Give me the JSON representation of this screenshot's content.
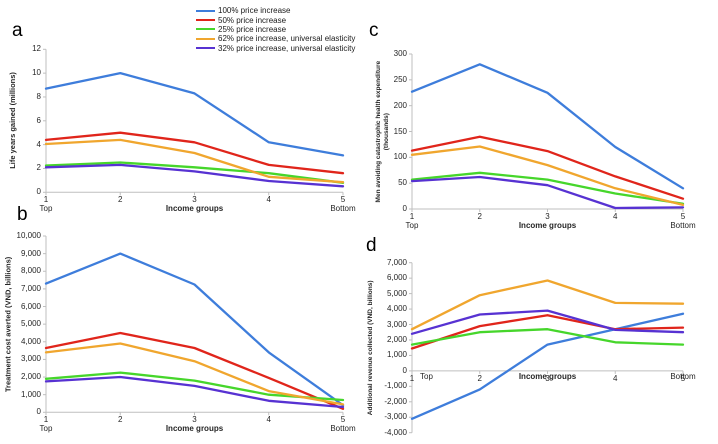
{
  "figure": {
    "legend": {
      "position": "top-center",
      "items": [
        {
          "label": "100% price increase",
          "color": "#3E7DDB"
        },
        {
          "label": "50% price increase",
          "color": "#E0251B"
        },
        {
          "label": "25% price increase",
          "color": "#46D62B"
        },
        {
          "label": "62% price increase, universal elasticity",
          "color": "#F0A62E"
        },
        {
          "label": "32% price increase, universal elasticity",
          "color": "#5732D2"
        }
      ]
    }
  },
  "chart_data": [
    {
      "id": "a",
      "type": "line",
      "panel_letter": "a",
      "grid": false,
      "ylabel": "Life years gained (millions)",
      "xlabel": "Income groups",
      "x_sublabel_left": "Top",
      "x_sublabel_right": "Bottom",
      "categories": [
        "1",
        "2",
        "3",
        "4",
        "5"
      ],
      "ylim": [
        0,
        12
      ],
      "yticks": [
        {
          "value": 0,
          "label": "0"
        },
        {
          "value": 2,
          "label": "2"
        },
        {
          "value": 4,
          "label": "4"
        },
        {
          "value": 6,
          "label": "6"
        },
        {
          "value": 8,
          "label": "8"
        },
        {
          "value": 10,
          "label": "10"
        },
        {
          "value": 12,
          "label": "12"
        }
      ],
      "series": [
        {
          "name": "100% price increase",
          "values": [
            8.7,
            10.0,
            8.3,
            4.2,
            3.1
          ]
        },
        {
          "name": "50% price increase",
          "values": [
            4.4,
            5.0,
            4.2,
            2.3,
            1.6
          ]
        },
        {
          "name": "25% price increase",
          "values": [
            2.25,
            2.5,
            2.1,
            1.6,
            0.8
          ]
        },
        {
          "name": "62% price increase, universal elasticity",
          "values": [
            4.05,
            4.4,
            3.3,
            1.3,
            0.85
          ]
        },
        {
          "name": "32% price increase, universal elasticity",
          "values": [
            2.1,
            2.3,
            1.75,
            0.95,
            0.5
          ]
        }
      ]
    },
    {
      "id": "b",
      "type": "line",
      "panel_letter": "b",
      "grid": false,
      "ylabel": "Treatment cost averted (VND, billions)",
      "xlabel": "Income groups",
      "x_sublabel_left": "Top",
      "x_sublabel_right": "Bottom",
      "categories": [
        "1",
        "2",
        "3",
        "4",
        "5"
      ],
      "ylim": [
        0,
        10000
      ],
      "yticks": [
        {
          "value": 0,
          "label": "0"
        },
        {
          "value": 1000,
          "label": "1,000"
        },
        {
          "value": 2000,
          "label": "2,000"
        },
        {
          "value": 3000,
          "label": "3,000"
        },
        {
          "value": 4000,
          "label": "4,000"
        },
        {
          "value": 5000,
          "label": "5,000"
        },
        {
          "value": 6000,
          "label": "6,000"
        },
        {
          "value": 7000,
          "label": "7,000"
        },
        {
          "value": 8000,
          "label": "8,000"
        },
        {
          "value": 9000,
          "label": "9,000"
        },
        {
          "value": 10000,
          "label": "10,000"
        }
      ],
      "series": [
        {
          "name": "100% price increase",
          "values": [
            7300,
            9000,
            7250,
            3400,
            400
          ]
        },
        {
          "name": "50% price increase",
          "values": [
            3650,
            4500,
            3650,
            1950,
            200
          ]
        },
        {
          "name": "25% price increase",
          "values": [
            1900,
            2250,
            1800,
            1000,
            700
          ]
        },
        {
          "name": "62% price increase, universal elasticity",
          "values": [
            3400,
            3900,
            2900,
            1200,
            450
          ]
        },
        {
          "name": "32% price increase, universal elasticity",
          "values": [
            1750,
            2000,
            1500,
            650,
            300
          ]
        }
      ]
    },
    {
      "id": "c",
      "type": "line",
      "panel_letter": "c",
      "grid": false,
      "ylabel": "Men avoiding catastrophic health expenditure\n(thousands)",
      "xlabel": "Income groups",
      "x_sublabel_left": "Top",
      "x_sublabel_right": "Bottom",
      "categories": [
        "1",
        "2",
        "3",
        "4",
        "5"
      ],
      "ylim": [
        0,
        300
      ],
      "yticks": [
        {
          "value": 0,
          "label": "0"
        },
        {
          "value": 50,
          "label": "50"
        },
        {
          "value": 100,
          "label": "100"
        },
        {
          "value": 150,
          "label": "150"
        },
        {
          "value": 200,
          "label": "200"
        },
        {
          "value": 250,
          "label": "250"
        },
        {
          "value": 300,
          "label": "300"
        }
      ],
      "series": [
        {
          "name": "100% price increase",
          "values": [
            227,
            280,
            225,
            120,
            40
          ]
        },
        {
          "name": "50% price increase",
          "values": [
            113,
            140,
            112,
            63,
            20
          ]
        },
        {
          "name": "25% price increase",
          "values": [
            57,
            70,
            57,
            30,
            10
          ]
        },
        {
          "name": "62% price increase, universal elasticity",
          "values": [
            105,
            121,
            85,
            40,
            8
          ]
        },
        {
          "name": "32% price increase, universal elasticity",
          "values": [
            54,
            62,
            46,
            2,
            3
          ]
        }
      ]
    },
    {
      "id": "d",
      "type": "line",
      "panel_letter": "d",
      "grid": false,
      "ylabel": "Additional revenue collected (VND, billions)",
      "xlabel": "Income groups",
      "x_sublabel_left": "Top",
      "x_sublabel_right": "Bottom",
      "categories": [
        "1",
        "2",
        "3",
        "4",
        "5"
      ],
      "ylim": [
        -4000,
        7000
      ],
      "yticks": [
        {
          "value": -4000,
          "label": "-4,000"
        },
        {
          "value": -3000,
          "label": "-3,000"
        },
        {
          "value": -2000,
          "label": "-2,000"
        },
        {
          "value": -1000,
          "label": "-1,000"
        },
        {
          "value": 0,
          "label": "0"
        },
        {
          "value": 1000,
          "label": "1,000"
        },
        {
          "value": 2000,
          "label": "2,000"
        },
        {
          "value": 3000,
          "label": "3,000"
        },
        {
          "value": 4000,
          "label": "4,000"
        },
        {
          "value": 5000,
          "label": "5,000"
        },
        {
          "value": 6000,
          "label": "6,000"
        },
        {
          "value": 7000,
          "label": "7,000"
        }
      ],
      "series": [
        {
          "name": "100% price increase",
          "values": [
            -3100,
            -1200,
            1700,
            2700,
            3700
          ]
        },
        {
          "name": "50% price increase",
          "values": [
            1450,
            2900,
            3600,
            2700,
            2800
          ]
        },
        {
          "name": "25% price increase",
          "values": [
            1700,
            2500,
            2700,
            1850,
            1700
          ]
        },
        {
          "name": "62% price increase, universal elasticity",
          "values": [
            2700,
            4900,
            5850,
            4400,
            4350
          ]
        },
        {
          "name": "32% price increase, universal elasticity",
          "values": [
            2400,
            3650,
            3900,
            2650,
            2500
          ]
        }
      ]
    }
  ]
}
